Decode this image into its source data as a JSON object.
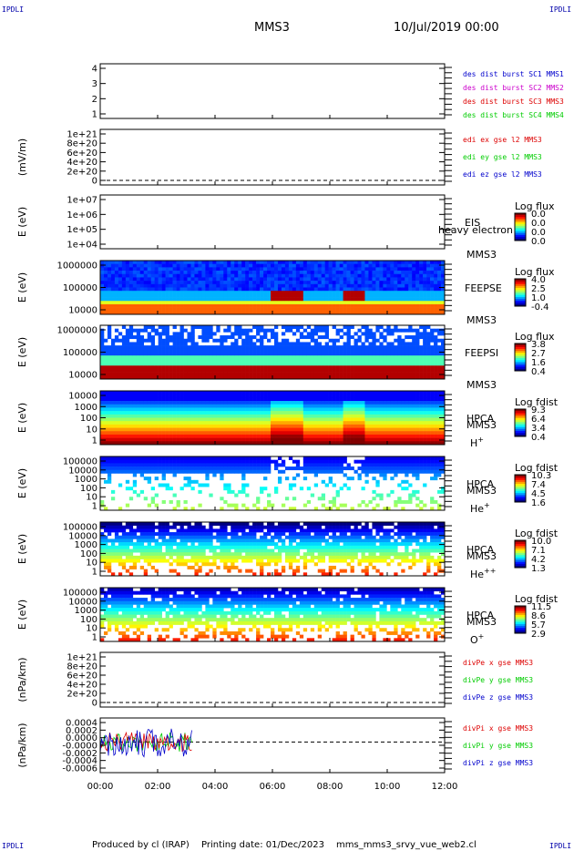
{
  "header": {
    "corner_left_top": "IPDLI",
    "corner_right_top": "IPDLI",
    "corner_left_bottom": "IPDLI",
    "corner_right_bottom": "IPDLI",
    "spacecraft": "MMS3",
    "date": "10/Jul/2019 00:00"
  },
  "footer": {
    "produced": "Produced by cl (IRAP)",
    "printing": "Printing date: 01/Dec/2023",
    "file": "mms_mms3_srvy_vue_web2.cl"
  },
  "colors": {
    "blue": "#0000cc",
    "magenta": "#cc00cc",
    "red": "#dd0000",
    "green": "#00cc00"
  },
  "chart_data": [
    {
      "type": "line",
      "panel": "des-dist-burst",
      "yticks": [
        "1",
        "2",
        "3",
        "4"
      ],
      "ylim": [
        0.7,
        4.3
      ],
      "legend": [
        {
          "text": "des dist burst SC1 MMS1",
          "color": "#0000cc"
        },
        {
          "text": "des dist burst SC2 MMS2",
          "color": "#cc00cc"
        },
        {
          "text": "des dist burst SC3 MMS3",
          "color": "#dd0000"
        },
        {
          "text": "des dist burst SC4 MMS4",
          "color": "#00cc00"
        }
      ]
    },
    {
      "type": "line",
      "panel": "edi",
      "ylabel": "(mV/m)",
      "yticks": [
        "0",
        "2e+20",
        "4e+20",
        "6e+20",
        "8e+20",
        "1e+21"
      ],
      "zero_line": true,
      "legend": [
        {
          "text": "edi ex gse l2 MMS3",
          "color": "#dd0000"
        },
        {
          "text": "edi ey gse l2 MMS3",
          "color": "#00cc00"
        },
        {
          "text": "edi ez gse l2 MMS3",
          "color": "#0000cc"
        }
      ]
    },
    {
      "type": "heatmap",
      "panel": "eis",
      "ylabel": "E (eV)",
      "yticks": [
        "1e+04",
        "1e+05",
        "1e+06",
        "1e+07"
      ],
      "instrument": "EIS",
      "overlay_text": "heavy electron to",
      "sc": "MMS3",
      "colorbar": {
        "title": "Log flux",
        "ticks": [
          "0.0",
          "0.0",
          "0.0",
          "0.0"
        ]
      }
    },
    {
      "type": "heatmap",
      "panel": "feepse",
      "ylabel": "E (eV)",
      "yticks": [
        "10000",
        "100000",
        "1000000"
      ],
      "instrument": "FEEPSE",
      "sc": "MMS3",
      "colorbar": {
        "title": "Log flux",
        "ticks": [
          "4.0",
          "2.5",
          "1.0",
          "-0.4"
        ]
      }
    },
    {
      "type": "heatmap",
      "panel": "feepsi",
      "ylabel": "E (eV)",
      "yticks": [
        "10000",
        "100000",
        "1000000"
      ],
      "instrument": "FEEPSI",
      "sc": "MMS3",
      "colorbar": {
        "title": "Log flux",
        "ticks": [
          "3.8",
          "2.7",
          "1.6",
          "0.4"
        ]
      }
    },
    {
      "type": "heatmap",
      "panel": "hpca-h",
      "ylabel": "E (eV)",
      "yticks": [
        "1",
        "10",
        "100",
        "1000",
        "10000"
      ],
      "instrument": "HPCA",
      "sc": "MMS3",
      "species": "H",
      "charge": "+",
      "colorbar": {
        "title": "Log fdist",
        "ticks": [
          "9.3",
          "6.4",
          "3.4",
          "0.4"
        ]
      }
    },
    {
      "type": "heatmap",
      "panel": "hpca-he",
      "ylabel": "E (eV)",
      "yticks": [
        "1",
        "10",
        "100",
        "1000",
        "10000",
        "100000"
      ],
      "instrument": "HPCA",
      "sc": "MMS3",
      "species": "He",
      "charge": "+",
      "colorbar": {
        "title": "Log fdist",
        "ticks": [
          "10.3",
          "7.4",
          "4.5",
          "1.6"
        ]
      }
    },
    {
      "type": "heatmap",
      "panel": "hpca-he2",
      "ylabel": "E (eV)",
      "yticks": [
        "1",
        "10",
        "100",
        "1000",
        "10000",
        "100000"
      ],
      "instrument": "HPCA",
      "sc": "MMS3",
      "species": "He",
      "charge": "++",
      "colorbar": {
        "title": "Log fdist",
        "ticks": [
          "10.0",
          "7.1",
          "4.2",
          "1.3"
        ]
      }
    },
    {
      "type": "heatmap",
      "panel": "hpca-o",
      "ylabel": "E (eV)",
      "yticks": [
        "1",
        "10",
        "100",
        "1000",
        "10000",
        "100000"
      ],
      "instrument": "HPCA",
      "sc": "MMS3",
      "species": "O",
      "charge": "+",
      "colorbar": {
        "title": "Log fdist",
        "ticks": [
          "11.5",
          "8.6",
          "5.7",
          "2.9"
        ]
      }
    },
    {
      "type": "line",
      "panel": "divpe",
      "ylabel": "(nPa/km)",
      "yticks": [
        "0",
        "2e+20",
        "4e+20",
        "6e+20",
        "8e+20",
        "1e+21"
      ],
      "zero_line": true,
      "legend": [
        {
          "text": "divPe x gse MMS3",
          "color": "#dd0000"
        },
        {
          "text": "divPe y gse MMS3",
          "color": "#00cc00"
        },
        {
          "text": "divPe z gse MMS3",
          "color": "#0000cc"
        }
      ]
    },
    {
      "type": "line",
      "panel": "divpi",
      "ylabel": "(nPa/km)",
      "yticks": [
        "-0.0006",
        "-0.0004",
        "-0.0002",
        "-0.0000",
        "0.0000",
        "0.0002",
        "0.0004"
      ],
      "ylim": [
        -0.0006,
        0.0005
      ],
      "zero_line": true,
      "data_extent_hours": [
        0.0,
        3.2
      ],
      "legend": [
        {
          "text": "divPi x gse MMS3",
          "color": "#dd0000"
        },
        {
          "text": "divPi y gse MMS3",
          "color": "#00cc00"
        },
        {
          "text": "divPi z gse MMS3",
          "color": "#0000cc"
        }
      ]
    }
  ],
  "time_axis": {
    "xlim_hours": [
      0,
      12
    ],
    "ticks": [
      "00:00",
      "02:00",
      "04:00",
      "06:00",
      "08:00",
      "10:00",
      "12:00"
    ]
  }
}
